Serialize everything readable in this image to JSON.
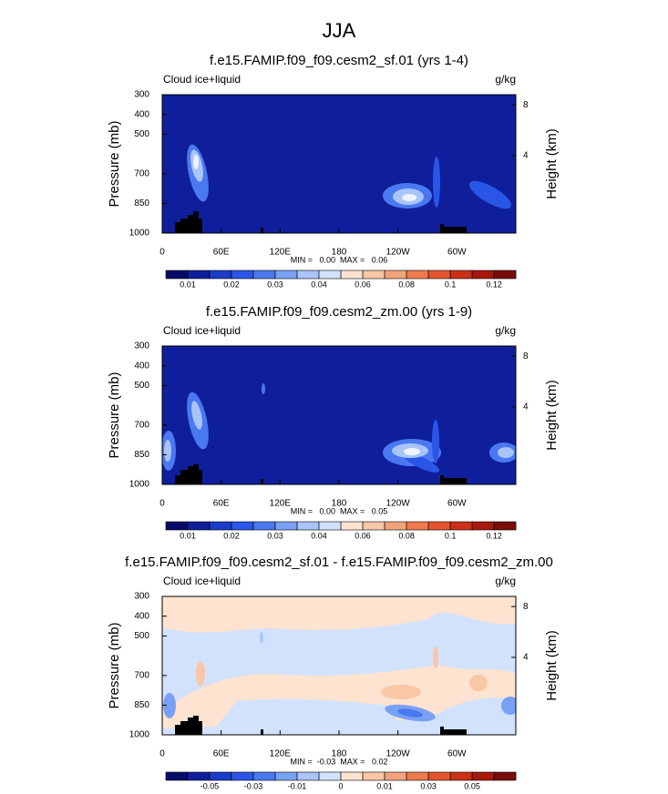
{
  "title": "JJA",
  "chart_data": [
    {
      "type": "contour",
      "title": "f.e15.FAMIP.f09_f09.cesm2_sf.01 (yrs 1-4)",
      "left_label": "Cloud ice+liquid",
      "right_label": "g/kg",
      "ylabel": "Pressure (mb)",
      "y2label": "Height (km)",
      "ylim": [
        1000,
        300
      ],
      "yticks": [
        300,
        400,
        500,
        700,
        850,
        1000
      ],
      "y2lim": [
        0.11,
        9.16
      ],
      "y2ticks": [
        4,
        8
      ],
      "xlim": [
        0,
        360
      ],
      "xticks": [
        0,
        {
          "value": 60,
          "label": "60E"
        },
        {
          "value": 120,
          "label": "120E"
        },
        180,
        {
          "value": 240,
          "label": "120W"
        },
        {
          "value": 300,
          "label": "60W"
        }
      ],
      "stats": "MIN =   0.00  MAX =   0.06",
      "colorbar": {
        "colors": [
          "#060b6b",
          "#0f1f9c",
          "#1a3cc8",
          "#2a56e8",
          "#4a78f0",
          "#7aa0f5",
          "#a8c4fa",
          "#d2e2fc",
          "#fde3d0",
          "#f9c6a6",
          "#f4a27a",
          "#ef7a4e",
          "#e5532f",
          "#cc3017",
          "#a8180d",
          "#7a0c0a"
        ],
        "labels": [
          0.01,
          0.02,
          0.03,
          0.04,
          0.06,
          0.08,
          0.1,
          0.12
        ]
      }
    },
    {
      "type": "contour",
      "title": "f.e15.FAMIP.f09_f09.cesm2_zm.00 (yrs 1-9)",
      "left_label": "Cloud ice+liquid",
      "right_label": "g/kg",
      "ylabel": "Pressure (mb)",
      "y2label": "Height (km)",
      "ylim": [
        1000,
        300
      ],
      "yticks": [
        300,
        400,
        500,
        700,
        850,
        1000
      ],
      "y2lim": [
        0.11,
        9.16
      ],
      "y2ticks": [
        4,
        8
      ],
      "xlim": [
        0,
        360
      ],
      "xticks": [
        0,
        {
          "value": 60,
          "label": "60E"
        },
        {
          "value": 120,
          "label": "120E"
        },
        180,
        {
          "value": 240,
          "label": "120W"
        },
        {
          "value": 300,
          "label": "60W"
        }
      ],
      "stats": "MIN =   0.00  MAX =   0.05",
      "colorbar": {
        "colors": [
          "#060b6b",
          "#0f1f9c",
          "#1a3cc8",
          "#2a56e8",
          "#4a78f0",
          "#7aa0f5",
          "#a8c4fa",
          "#d2e2fc",
          "#fde3d0",
          "#f9c6a6",
          "#f4a27a",
          "#ef7a4e",
          "#e5532f",
          "#cc3017",
          "#a8180d",
          "#7a0c0a"
        ],
        "labels": [
          0.01,
          0.02,
          0.03,
          0.04,
          0.06,
          0.08,
          0.1,
          0.12
        ]
      }
    },
    {
      "type": "contour",
      "title": "f.e15.FAMIP.f09_f09.cesm2_sf.01 - f.e15.FAMIP.f09_f09.cesm2_zm.00",
      "left_label": "Cloud ice+liquid",
      "right_label": "g/kg",
      "ylabel": "Pressure (mb)",
      "y2label": "Height (km)",
      "ylim": [
        1000,
        300
      ],
      "yticks": [
        300,
        400,
        500,
        700,
        850,
        1000
      ],
      "y2lim": [
        0.11,
        9.16
      ],
      "y2ticks": [
        4,
        8
      ],
      "xlim": [
        0,
        360
      ],
      "xticks": [
        0,
        {
          "value": 60,
          "label": "60E"
        },
        {
          "value": 120,
          "label": "120E"
        },
        180,
        {
          "value": 240,
          "label": "120W"
        },
        {
          "value": 300,
          "label": "60W"
        }
      ],
      "stats": "MIN =  -0.03  MAX =   0.02",
      "colorbar": {
        "colors": [
          "#060b6b",
          "#0f1f9c",
          "#1a3cc8",
          "#2a56e8",
          "#4a78f0",
          "#7aa0f5",
          "#a8c4fa",
          "#d2e2fc",
          "#fde3d0",
          "#f9c6a6",
          "#f4a27a",
          "#ef7a4e",
          "#e5532f",
          "#cc3017",
          "#a8180d",
          "#7a0c0a"
        ],
        "labels": [
          -0.05,
          -0.03,
          -0.01,
          0,
          0.01,
          0.03,
          0.05
        ]
      }
    }
  ]
}
